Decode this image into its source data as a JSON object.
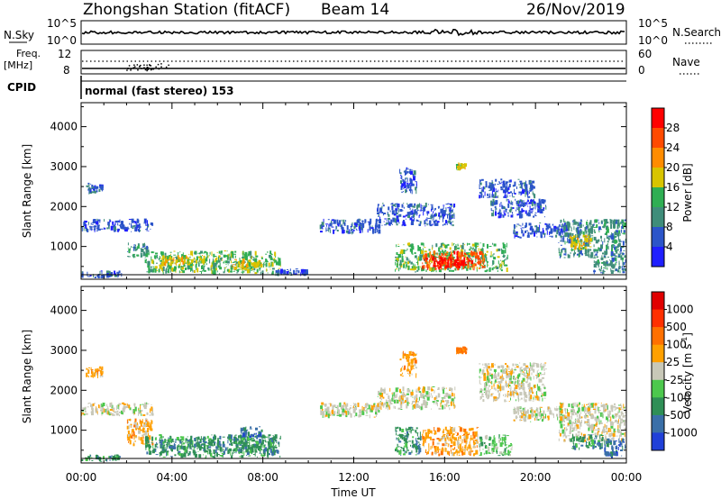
{
  "header": {
    "station": "Zhongshan Station (fitACF)",
    "beam": "Beam 14",
    "date": "26/Nov/2019"
  },
  "status_panels": {
    "nsky_label": "N.Sky",
    "nsearch_label": "N.Search",
    "freq_label": "Freq.",
    "freq_unit": "[MHz]",
    "nave_label": "Nave",
    "cpid_label": "CPID",
    "cpid_text": "normal (fast stereo) 153",
    "nsky_ticks": [
      "10^5",
      "10^0"
    ],
    "nsearch_ticks": [
      "10^5",
      "10^0"
    ],
    "freq_ticks": [
      "12",
      "8"
    ],
    "nave_ticks": [
      "60",
      "0"
    ]
  },
  "chart_data": [
    {
      "type": "heatmap",
      "name": "power",
      "ylabel": "Slant Range [km]",
      "xlabel": "",
      "x_ticks": [
        "00:00",
        "04:00",
        "08:00",
        "12:00",
        "16:00",
        "20:00",
        "00:00"
      ],
      "y_ticks": [
        1000,
        2000,
        3000,
        4000
      ],
      "xlim": [
        0,
        24
      ],
      "ylim": [
        180,
        4600
      ],
      "colorbar": {
        "label": "Power [dB]",
        "tick_labels": [
          "4",
          "8",
          "12",
          "16",
          "20",
          "24",
          "28"
        ],
        "colors": [
          "#1f1fff",
          "#2c55c9",
          "#3f8d7a",
          "#2fae53",
          "#d8c400",
          "#ff8c00",
          "#ff4a00",
          "#ff0000"
        ]
      },
      "regions": [
        {
          "t": [
            0.2,
            1.0
          ],
          "r": [
            2300,
            2600
          ],
          "level": 1
        },
        {
          "t": [
            0.0,
            3.2
          ],
          "r": [
            1350,
            1700
          ],
          "level": 1
        },
        {
          "t": [
            0.0,
            1.8
          ],
          "r": [
            200,
            400
          ],
          "level": 1
        },
        {
          "t": [
            2.0,
            3.0
          ],
          "r": [
            700,
            1100
          ],
          "level": 2
        },
        {
          "t": [
            2.8,
            8.8
          ],
          "r": [
            300,
            900
          ],
          "level": 3
        },
        {
          "t": [
            3.5,
            5.5
          ],
          "r": [
            500,
            800
          ],
          "level": 4
        },
        {
          "t": [
            6.5,
            8.0
          ],
          "r": [
            400,
            700
          ],
          "level": 4
        },
        {
          "t": [
            8.5,
            10.0
          ],
          "r": [
            250,
            450
          ],
          "level": 1
        },
        {
          "t": [
            10.5,
            13.2
          ],
          "r": [
            1300,
            1700
          ],
          "level": 1
        },
        {
          "t": [
            13.0,
            16.5
          ],
          "r": [
            1500,
            2100
          ],
          "level": 1
        },
        {
          "t": [
            14.0,
            14.8
          ],
          "r": [
            2300,
            3000
          ],
          "level": 1
        },
        {
          "t": [
            13.8,
            18.8
          ],
          "r": [
            350,
            1100
          ],
          "level": 3
        },
        {
          "t": [
            15.0,
            17.8
          ],
          "r": [
            400,
            900
          ],
          "level": 6
        },
        {
          "t": [
            15.5,
            17.2
          ],
          "r": [
            450,
            750
          ],
          "level": 7
        },
        {
          "t": [
            16.5,
            17.0
          ],
          "r": [
            2900,
            3100
          ],
          "level": 4
        },
        {
          "t": [
            17.5,
            20.0
          ],
          "r": [
            2200,
            2700
          ],
          "level": 1
        },
        {
          "t": [
            18.0,
            20.5
          ],
          "r": [
            1700,
            2200
          ],
          "level": 1
        },
        {
          "t": [
            19.0,
            21.5
          ],
          "r": [
            1200,
            1600
          ],
          "level": 1
        },
        {
          "t": [
            21.0,
            24.0
          ],
          "r": [
            700,
            1700
          ],
          "level": 2
        },
        {
          "t": [
            21.5,
            22.5
          ],
          "r": [
            900,
            1300
          ],
          "level": 4
        },
        {
          "t": [
            22.5,
            24.0
          ],
          "r": [
            300,
            800
          ],
          "level": 2
        }
      ]
    },
    {
      "type": "heatmap",
      "name": "velocity",
      "ylabel": "Slant Range [km]",
      "xlabel": "Time UT",
      "x_ticks": [
        "00:00",
        "04:00",
        "08:00",
        "12:00",
        "16:00",
        "20:00",
        "00:00"
      ],
      "y_ticks": [
        1000,
        2000,
        3000,
        4000
      ],
      "xlim": [
        0,
        24
      ],
      "ylim": [
        180,
        4600
      ],
      "colorbar": {
        "label": "Velocity [m s",
        "label_sup": "-1",
        "label_end": "]",
        "tick_labels": [
          "1000",
          "500",
          "100",
          "25",
          "-25",
          "-100",
          "-500",
          "-1000"
        ],
        "colors": [
          "#2040d8",
          "#3a6fa8",
          "#2f8f56",
          "#4dc84d",
          "#c8c8b8",
          "#ffa000",
          "#ff7000",
          "#ff3000",
          "#e00000"
        ]
      },
      "regions": [
        {
          "t": [
            0.2,
            1.0
          ],
          "r": [
            2300,
            2600
          ],
          "level": 5
        },
        {
          "t": [
            0.0,
            3.2
          ],
          "r": [
            1350,
            1700
          ],
          "level": 4
        },
        {
          "t": [
            0.0,
            1.8
          ],
          "r": [
            200,
            400
          ],
          "level": 2
        },
        {
          "t": [
            2.0,
            3.2
          ],
          "r": [
            600,
            1300
          ],
          "level": 5
        },
        {
          "t": [
            2.8,
            8.8
          ],
          "r": [
            300,
            900
          ],
          "level": 2
        },
        {
          "t": [
            3.5,
            5.5
          ],
          "r": [
            500,
            800
          ],
          "level": 2
        },
        {
          "t": [
            6.5,
            8.5
          ],
          "r": [
            400,
            900
          ],
          "level": 2
        },
        {
          "t": [
            7.0,
            8.0
          ],
          "r": [
            800,
            1100
          ],
          "level": 1
        },
        {
          "t": [
            10.5,
            13.2
          ],
          "r": [
            1300,
            1700
          ],
          "level": 4
        },
        {
          "t": [
            13.0,
            16.5
          ],
          "r": [
            1500,
            2100
          ],
          "level": 4
        },
        {
          "t": [
            14.0,
            14.8
          ],
          "r": [
            2300,
            3000
          ],
          "level": 5
        },
        {
          "t": [
            13.8,
            15.0
          ],
          "r": [
            350,
            1100
          ],
          "level": 2
        },
        {
          "t": [
            15.0,
            17.5
          ],
          "r": [
            350,
            1100
          ],
          "level": 5
        },
        {
          "t": [
            17.5,
            19.0
          ],
          "r": [
            350,
            900
          ],
          "level": 3
        },
        {
          "t": [
            16.5,
            17.0
          ],
          "r": [
            2900,
            3100
          ],
          "level": 6
        },
        {
          "t": [
            17.5,
            20.5
          ],
          "r": [
            1700,
            2700
          ],
          "level": 4
        },
        {
          "t": [
            19.0,
            21.5
          ],
          "r": [
            1200,
            1600
          ],
          "level": 4
        },
        {
          "t": [
            21.0,
            24.0
          ],
          "r": [
            700,
            1700
          ],
          "level": 4
        },
        {
          "t": [
            21.5,
            23.0
          ],
          "r": [
            500,
            900
          ],
          "level": 2
        },
        {
          "t": [
            23.0,
            24.0
          ],
          "r": [
            300,
            800
          ],
          "level": 1
        }
      ]
    }
  ]
}
